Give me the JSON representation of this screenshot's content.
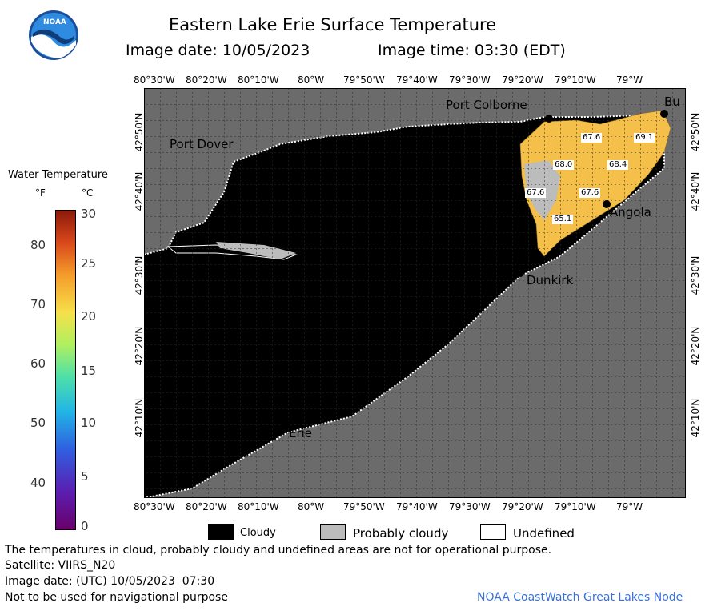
{
  "header": {
    "title": "Eastern Lake Erie Surface Temperature",
    "image_date": "Image date: 10/05/2023",
    "image_time": "Image time: 03:30 (EDT)",
    "logo_text": "NOAA"
  },
  "axes": {
    "longitudes": [
      "80°30'W",
      "80°20'W",
      "80°10'W",
      "80°W",
      "79°50'W",
      "79°40'W",
      "79°30'W",
      "79°20'W",
      "79°10'W",
      "79°W"
    ],
    "latitudes": [
      "42°50'N",
      "42°40'N",
      "42°30'N",
      "42°20'N",
      "42°10'N"
    ]
  },
  "places": [
    {
      "name": "Port Colborne"
    },
    {
      "name": "Port Dover"
    },
    {
      "name": "Bu"
    },
    {
      "name": "Angola"
    },
    {
      "name": "Dunkirk"
    },
    {
      "name": "Erie"
    }
  ],
  "temperature_labels": [
    "67.6",
    "69.1",
    "68.0",
    "68.4",
    "67.6",
    "67.6",
    "65.1"
  ],
  "colorbar": {
    "title": "Water Temperature",
    "unit_f": "°F",
    "unit_c": "°C",
    "fahrenheit_ticks": [
      "80",
      "70",
      "60",
      "50",
      "40"
    ],
    "celsius_ticks": [
      "30",
      "25",
      "20",
      "15",
      "10",
      "5",
      "0"
    ]
  },
  "legend": {
    "cloudy": "Cloudy",
    "probably_cloudy": "Probably cloudy",
    "undefined": "Undefined"
  },
  "footer": {
    "disclaimer": "The temperatures in cloud, probably cloudy and undefined areas are not for operational purpose.",
    "satellite": "Satellite: VIIRS_N20",
    "utc_date": "Image date: (UTC) 10/05/2023  07:30",
    "nav_warning": "Not to be used for navigational purpose",
    "credit": "NOAA CoastWatch Great Lakes Node"
  },
  "colors": {
    "land": "#6b6b6b",
    "cloudy": "#000000",
    "probably_cloudy": "#bcbcbc",
    "warm_water": "#f5c04a",
    "credit": "#3a6fd8"
  }
}
